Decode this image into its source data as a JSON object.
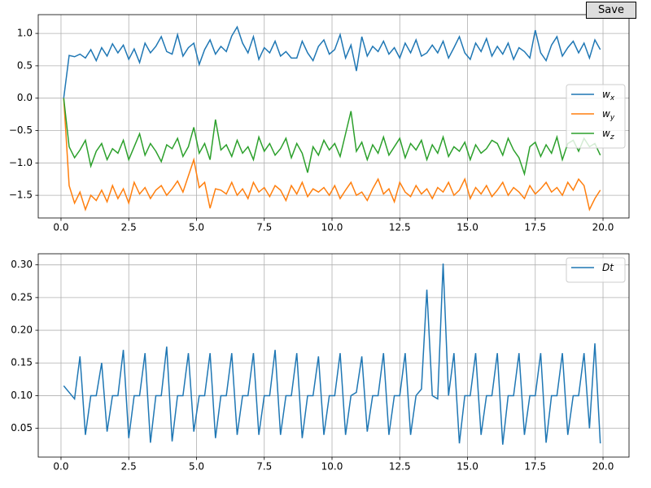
{
  "save_button": {
    "label": "Save"
  },
  "chart_data": [
    {
      "type": "line",
      "legend": "center right",
      "grid": true,
      "xlim": [
        -0.84,
        20.96
      ],
      "ylim": [
        -1.85,
        1.29
      ],
      "xticks": [
        {
          "value": 0,
          "label": "0.0"
        },
        {
          "value": 2.5,
          "label": "2.5"
        },
        {
          "value": 5,
          "label": "5.0"
        },
        {
          "value": 7.5,
          "label": "7.5"
        },
        {
          "value": 10,
          "label": "10.0"
        },
        {
          "value": 12.5,
          "label": "12.5"
        },
        {
          "value": 15,
          "label": "15.0"
        },
        {
          "value": 17.5,
          "label": "17.5"
        },
        {
          "value": 20,
          "label": "20.0"
        }
      ],
      "yticks": [
        {
          "value": 1,
          "label": "1.0"
        },
        0.5,
        {
          "value": 0,
          "label": "0.0"
        },
        {
          "value": -0.5,
          "label": "−0.5"
        },
        {
          "value": -1,
          "label": "−1.0"
        },
        {
          "value": -1.5,
          "label": "−1.5"
        }
      ],
      "x": [
        0.1,
        0.3,
        0.5,
        0.7,
        0.9,
        1.1,
        1.3,
        1.5,
        1.7,
        1.9,
        2.1,
        2.3,
        2.5,
        2.7,
        2.9,
        3.1,
        3.3,
        3.5,
        3.7,
        3.9,
        4.1,
        4.3,
        4.5,
        4.7,
        4.9,
        5.1,
        5.3,
        5.5,
        5.7,
        5.9,
        6.1,
        6.3,
        6.5,
        6.7,
        6.9,
        7.1,
        7.3,
        7.5,
        7.7,
        7.9,
        8.1,
        8.3,
        8.5,
        8.7,
        8.9,
        9.1,
        9.3,
        9.5,
        9.7,
        9.9,
        10.1,
        10.3,
        10.5,
        10.7,
        10.9,
        11.1,
        11.3,
        11.5,
        11.7,
        11.9,
        12.1,
        12.3,
        12.5,
        12.7,
        12.9,
        13.1,
        13.3,
        13.5,
        13.7,
        13.9,
        14.1,
        14.3,
        14.5,
        14.7,
        14.9,
        15.1,
        15.3,
        15.5,
        15.7,
        15.9,
        16.1,
        16.3,
        16.5,
        16.7,
        16.9,
        17.1,
        17.3,
        17.5,
        17.7,
        17.9,
        18.1,
        18.3,
        18.5,
        18.7,
        18.9,
        19.1,
        19.3,
        19.5,
        19.7,
        19.9
      ],
      "series": [
        {
          "name": "w_x",
          "color": "#1f77b4",
          "values": [
            0.0,
            0.66,
            0.64,
            0.68,
            0.62,
            0.75,
            0.58,
            0.78,
            0.65,
            0.84,
            0.7,
            0.82,
            0.6,
            0.76,
            0.55,
            0.85,
            0.7,
            0.8,
            0.95,
            0.72,
            0.68,
            0.98,
            0.65,
            0.78,
            0.85,
            0.52,
            0.75,
            0.9,
            0.68,
            0.8,
            0.72,
            0.96,
            1.1,
            0.85,
            0.7,
            0.95,
            0.6,
            0.78,
            0.7,
            0.88,
            0.65,
            0.72,
            0.62,
            0.62,
            0.88,
            0.7,
            0.58,
            0.8,
            0.9,
            0.68,
            0.75,
            0.98,
            0.62,
            0.82,
            0.42,
            0.95,
            0.65,
            0.8,
            0.72,
            0.88,
            0.68,
            0.78,
            0.62,
            0.85,
            0.7,
            0.9,
            0.65,
            0.7,
            0.82,
            0.7,
            0.88,
            0.62,
            0.78,
            0.95,
            0.7,
            0.6,
            0.85,
            0.72,
            0.92,
            0.65,
            0.8,
            0.68,
            0.85,
            0.6,
            0.78,
            0.72,
            0.62,
            1.05,
            0.7,
            0.58,
            0.82,
            0.95,
            0.65,
            0.78,
            0.88,
            0.7,
            0.85,
            0.62,
            0.9,
            0.75
          ]
        },
        {
          "name": "w_y",
          "color": "#ff7f0e",
          "values": [
            0.0,
            -1.35,
            -1.62,
            -1.45,
            -1.72,
            -1.5,
            -1.58,
            -1.42,
            -1.6,
            -1.35,
            -1.55,
            -1.4,
            -1.62,
            -1.3,
            -1.48,
            -1.38,
            -1.55,
            -1.42,
            -1.35,
            -1.5,
            -1.4,
            -1.28,
            -1.45,
            -1.2,
            -0.95,
            -1.38,
            -1.3,
            -1.7,
            -1.4,
            -1.42,
            -1.48,
            -1.3,
            -1.5,
            -1.4,
            -1.55,
            -1.3,
            -1.45,
            -1.38,
            -1.52,
            -1.35,
            -1.42,
            -1.58,
            -1.35,
            -1.48,
            -1.3,
            -1.52,
            -1.4,
            -1.45,
            -1.38,
            -1.5,
            -1.35,
            -1.55,
            -1.42,
            -1.3,
            -1.5,
            -1.45,
            -1.58,
            -1.4,
            -1.25,
            -1.48,
            -1.4,
            -1.6,
            -1.3,
            -1.45,
            -1.52,
            -1.35,
            -1.48,
            -1.4,
            -1.55,
            -1.38,
            -1.45,
            -1.3,
            -1.5,
            -1.42,
            -1.25,
            -1.55,
            -1.38,
            -1.48,
            -1.35,
            -1.52,
            -1.42,
            -1.3,
            -1.5,
            -1.38,
            -1.45,
            -1.55,
            -1.35,
            -1.48,
            -1.4,
            -1.3,
            -1.45,
            -1.38,
            -1.5,
            -1.3,
            -1.42,
            -1.25,
            -1.35,
            -1.72,
            -1.55,
            -1.42
          ]
        },
        {
          "name": "w_z",
          "color": "#2ca02c",
          "values": [
            0.0,
            -0.75,
            -0.92,
            -0.8,
            -0.65,
            -1.05,
            -0.82,
            -0.7,
            -0.95,
            -0.78,
            -0.85,
            -0.65,
            -0.95,
            -0.75,
            -0.55,
            -0.88,
            -0.7,
            -0.82,
            -0.98,
            -0.72,
            -0.78,
            -0.62,
            -0.9,
            -0.75,
            -0.45,
            -0.85,
            -0.7,
            -0.95,
            -0.33,
            -0.8,
            -0.72,
            -0.9,
            -0.65,
            -0.85,
            -0.75,
            -0.95,
            -0.6,
            -0.82,
            -0.7,
            -0.88,
            -0.78,
            -0.62,
            -0.92,
            -0.7,
            -0.85,
            -1.15,
            -0.75,
            -0.88,
            -0.65,
            -0.8,
            -0.7,
            -0.9,
            -0.55,
            -0.2,
            -0.82,
            -0.68,
            -0.95,
            -0.72,
            -0.85,
            -0.6,
            -0.88,
            -0.75,
            -0.62,
            -0.92,
            -0.7,
            -0.8,
            -0.65,
            -0.95,
            -0.72,
            -0.85,
            -0.6,
            -0.9,
            -0.75,
            -0.82,
            -0.68,
            -0.95,
            -0.72,
            -0.85,
            -0.78,
            -0.65,
            -0.7,
            -0.88,
            -0.62,
            -0.8,
            -0.92,
            -1.17,
            -0.75,
            -0.68,
            -0.9,
            -0.72,
            -0.85,
            -0.6,
            -0.95,
            -0.7,
            -0.65,
            -0.82,
            -0.62,
            -0.75,
            -0.7,
            -0.88
          ]
        }
      ]
    },
    {
      "type": "line",
      "legend": "upper right",
      "grid": true,
      "xlim": [
        -0.84,
        20.96
      ],
      "ylim": [
        0.006,
        0.317
      ],
      "xticks": [
        {
          "value": 0,
          "label": "0.0"
        },
        {
          "value": 2.5,
          "label": "2.5"
        },
        {
          "value": 5,
          "label": "5.0"
        },
        {
          "value": 7.5,
          "label": "7.5"
        },
        {
          "value": 10,
          "label": "10.0"
        },
        {
          "value": 12.5,
          "label": "12.5"
        },
        {
          "value": 15,
          "label": "15.0"
        },
        {
          "value": 17.5,
          "label": "17.5"
        },
        {
          "value": 20,
          "label": "20.0"
        }
      ],
      "yticks": [
        0.05,
        {
          "value": 0.1,
          "label": "0.10"
        },
        0.15,
        {
          "value": 0.2,
          "label": "0.20"
        },
        0.25,
        {
          "value": 0.3,
          "label": "0.30"
        }
      ],
      "x": [
        0.1,
        0.3,
        0.5,
        0.7,
        0.9,
        1.1,
        1.3,
        1.5,
        1.7,
        1.9,
        2.1,
        2.3,
        2.5,
        2.7,
        2.9,
        3.1,
        3.3,
        3.5,
        3.7,
        3.9,
        4.1,
        4.3,
        4.5,
        4.7,
        4.9,
        5.1,
        5.3,
        5.5,
        5.7,
        5.9,
        6.1,
        6.3,
        6.5,
        6.7,
        6.9,
        7.1,
        7.3,
        7.5,
        7.7,
        7.9,
        8.1,
        8.3,
        8.5,
        8.7,
        8.9,
        9.1,
        9.3,
        9.5,
        9.7,
        9.9,
        10.1,
        10.3,
        10.5,
        10.7,
        10.9,
        11.1,
        11.3,
        11.5,
        11.7,
        11.9,
        12.1,
        12.3,
        12.5,
        12.7,
        12.9,
        13.1,
        13.3,
        13.5,
        13.7,
        13.9,
        14.1,
        14.3,
        14.5,
        14.7,
        14.9,
        15.1,
        15.3,
        15.5,
        15.7,
        15.9,
        16.1,
        16.3,
        16.5,
        16.7,
        16.9,
        17.1,
        17.3,
        17.5,
        17.7,
        17.9,
        18.1,
        18.3,
        18.5,
        18.7,
        18.9,
        19.1,
        19.3,
        19.5,
        19.7,
        19.9
      ],
      "series": [
        {
          "name": "Dt",
          "color": "#1f77b4",
          "values": [
            0.115,
            0.105,
            0.095,
            0.16,
            0.04,
            0.1,
            0.1,
            0.15,
            0.045,
            0.1,
            0.1,
            0.17,
            0.035,
            0.1,
            0.1,
            0.165,
            0.028,
            0.1,
            0.1,
            0.175,
            0.03,
            0.1,
            0.1,
            0.165,
            0.045,
            0.1,
            0.1,
            0.165,
            0.035,
            0.1,
            0.1,
            0.165,
            0.04,
            0.1,
            0.1,
            0.165,
            0.04,
            0.1,
            0.1,
            0.17,
            0.04,
            0.1,
            0.1,
            0.165,
            0.035,
            0.1,
            0.1,
            0.16,
            0.04,
            0.1,
            0.1,
            0.165,
            0.04,
            0.1,
            0.105,
            0.16,
            0.045,
            0.1,
            0.1,
            0.165,
            0.04,
            0.1,
            0.1,
            0.165,
            0.04,
            0.1,
            0.11,
            0.262,
            0.1,
            0.095,
            0.302,
            0.1,
            0.165,
            0.027,
            0.1,
            0.1,
            0.165,
            0.04,
            0.1,
            0.1,
            0.165,
            0.025,
            0.1,
            0.1,
            0.165,
            0.04,
            0.1,
            0.1,
            0.165,
            0.028,
            0.1,
            0.1,
            0.165,
            0.04,
            0.1,
            0.1,
            0.165,
            0.05,
            0.18,
            0.027
          ]
        }
      ]
    }
  ]
}
